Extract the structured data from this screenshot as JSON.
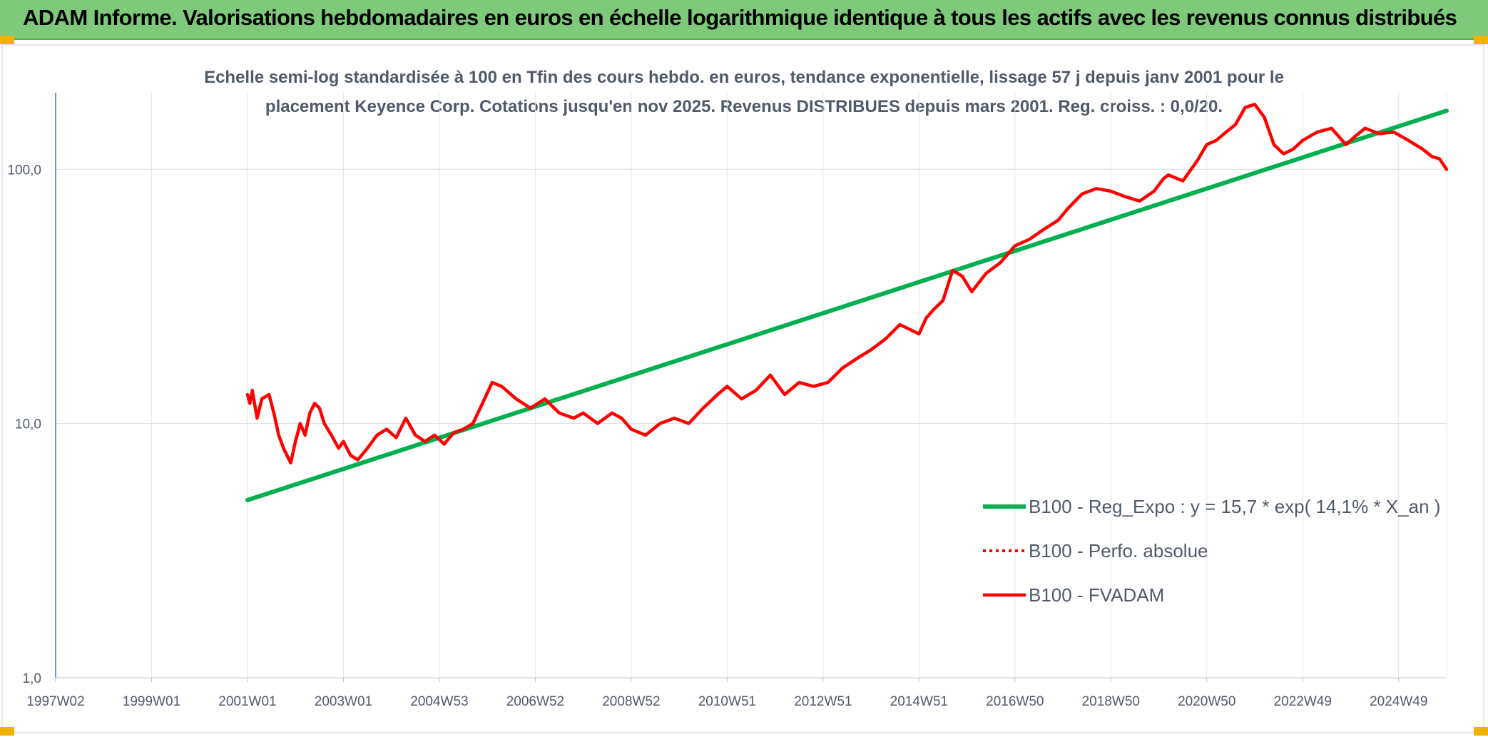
{
  "header": {
    "title": "ADAM Informe. Valorisations hebdomadaires en euros en échelle logarithmique identique à tous les actifs avec les revenus connus distribués"
  },
  "colors": {
    "header_bg": "#7ec97a",
    "accent_corner": "#f2b300",
    "regression_line": "#00b050",
    "fvadam_line": "#ff0000",
    "perfo_line": "#ff0000"
  },
  "chart_data": {
    "type": "line",
    "title_lines": [
      "Echelle semi-log standardisée à 100 en Tfin des cours hebdo. en euros, tendance exponentielle, lissage 57 j depuis janv 2001 pour le",
      "placement Keyence Corp. Cotations jusqu'en nov 2025. Revenus DISTRIBUES depuis mars 2001. Reg. croiss. : 0,0/20."
    ],
    "y_scale": "log",
    "ylim": [
      1,
      200
    ],
    "y_ticks": [
      {
        "value": 1,
        "label": "1,0"
      },
      {
        "value": 10,
        "label": "10,0"
      },
      {
        "value": 100,
        "label": "100,0"
      }
    ],
    "xlim": [
      1997.0,
      2026.0
    ],
    "x_ticks": [
      {
        "value": 1997.0,
        "label": "1997W02"
      },
      {
        "value": 1999.0,
        "label": "1999W01"
      },
      {
        "value": 2001.0,
        "label": "2001W01"
      },
      {
        "value": 2003.0,
        "label": "2003W01"
      },
      {
        "value": 2005.0,
        "label": "2004W53"
      },
      {
        "value": 2007.0,
        "label": "2006W52"
      },
      {
        "value": 2009.0,
        "label": "2008W52"
      },
      {
        "value": 2011.0,
        "label": "2010W51"
      },
      {
        "value": 2013.0,
        "label": "2012W51"
      },
      {
        "value": 2015.0,
        "label": "2014W51"
      },
      {
        "value": 2017.0,
        "label": "2016W50"
      },
      {
        "value": 2019.0,
        "label": "2018W50"
      },
      {
        "value": 2021.0,
        "label": "2020W50"
      },
      {
        "value": 2023.0,
        "label": "2022W49"
      },
      {
        "value": 2025.0,
        "label": "2024W49"
      }
    ],
    "grid": true,
    "legend_position": "bottom-right",
    "series": [
      {
        "name": "B100 - Reg_Expo : y = 15,7 * exp( 14,1% *  X_an )",
        "style": "solid-thick",
        "color": "#00b050",
        "x": [
          2001.0,
          2026.0
        ],
        "y": [
          5.0,
          170.0
        ]
      },
      {
        "name": "B100 - Perfo. absolue",
        "style": "dotted",
        "color": "#ff0000",
        "x": [],
        "y": []
      },
      {
        "name": "B100 - FVADAM",
        "style": "solid",
        "color": "#ff0000",
        "x": [
          2001.0,
          2001.05,
          2001.1,
          2001.2,
          2001.3,
          2001.45,
          2001.55,
          2001.65,
          2001.75,
          2001.9,
          2002.0,
          2002.1,
          2002.2,
          2002.3,
          2002.4,
          2002.5,
          2002.6,
          2002.75,
          2002.9,
          2003.0,
          2003.15,
          2003.3,
          2003.5,
          2003.7,
          2003.9,
          2004.1,
          2004.3,
          2004.5,
          2004.7,
          2004.9,
          2005.1,
          2005.3,
          2005.5,
          2005.7,
          2005.9,
          2006.1,
          2006.3,
          2006.6,
          2006.9,
          2007.2,
          2007.5,
          2007.8,
          2008.0,
          2008.3,
          2008.6,
          2008.8,
          2009.0,
          2009.3,
          2009.6,
          2009.9,
          2010.2,
          2010.5,
          2010.8,
          2011.0,
          2011.3,
          2011.6,
          2011.9,
          2012.2,
          2012.5,
          2012.8,
          2013.1,
          2013.4,
          2013.7,
          2014.0,
          2014.3,
          2014.6,
          2014.8,
          2015.0,
          2015.15,
          2015.3,
          2015.5,
          2015.7,
          2015.9,
          2016.1,
          2016.4,
          2016.7,
          2017.0,
          2017.3,
          2017.6,
          2017.9,
          2018.1,
          2018.4,
          2018.7,
          2019.0,
          2019.3,
          2019.6,
          2019.9,
          2020.1,
          2020.2,
          2020.5,
          2020.8,
          2021.0,
          2021.2,
          2021.4,
          2021.6,
          2021.8,
          2022.0,
          2022.2,
          2022.4,
          2022.6,
          2022.8,
          2023.0,
          2023.3,
          2023.6,
          2023.9,
          2024.1,
          2024.3,
          2024.6,
          2024.9,
          2025.2,
          2025.5,
          2025.7,
          2025.85,
          2026.0
        ],
        "y": [
          13.0,
          12.0,
          13.5,
          10.5,
          12.5,
          13.0,
          11.0,
          9.0,
          8.0,
          7.0,
          8.5,
          10.0,
          9.0,
          11.0,
          12.0,
          11.5,
          10.0,
          9.0,
          8.0,
          8.5,
          7.5,
          7.2,
          8.0,
          9.0,
          9.5,
          8.8,
          10.5,
          9.0,
          8.5,
          9.0,
          8.3,
          9.2,
          9.5,
          10.0,
          12.0,
          14.5,
          14.0,
          12.5,
          11.5,
          12.5,
          11.0,
          10.5,
          11.0,
          10.0,
          11.0,
          10.5,
          9.5,
          9.0,
          10.0,
          10.5,
          10.0,
          11.5,
          13.0,
          14.0,
          12.5,
          13.5,
          15.5,
          13.0,
          14.5,
          14.0,
          14.5,
          16.5,
          18.0,
          19.5,
          21.5,
          24.5,
          23.5,
          22.5,
          26.0,
          28.0,
          30.5,
          40.0,
          38.0,
          33.0,
          39.0,
          43.0,
          50.0,
          53.0,
          58.0,
          63.0,
          70.0,
          80.0,
          84.0,
          82.0,
          78.0,
          75.0,
          82.0,
          92.0,
          95.0,
          90.0,
          108.0,
          125.0,
          130.0,
          140.0,
          150.0,
          175.0,
          180.0,
          160.0,
          125.0,
          115.0,
          120.0,
          130.0,
          140.0,
          145.0,
          125.0,
          135.0,
          145.0,
          138.0,
          140.0,
          130.0,
          120.0,
          112.0,
          110.0,
          100.0
        ]
      }
    ]
  }
}
